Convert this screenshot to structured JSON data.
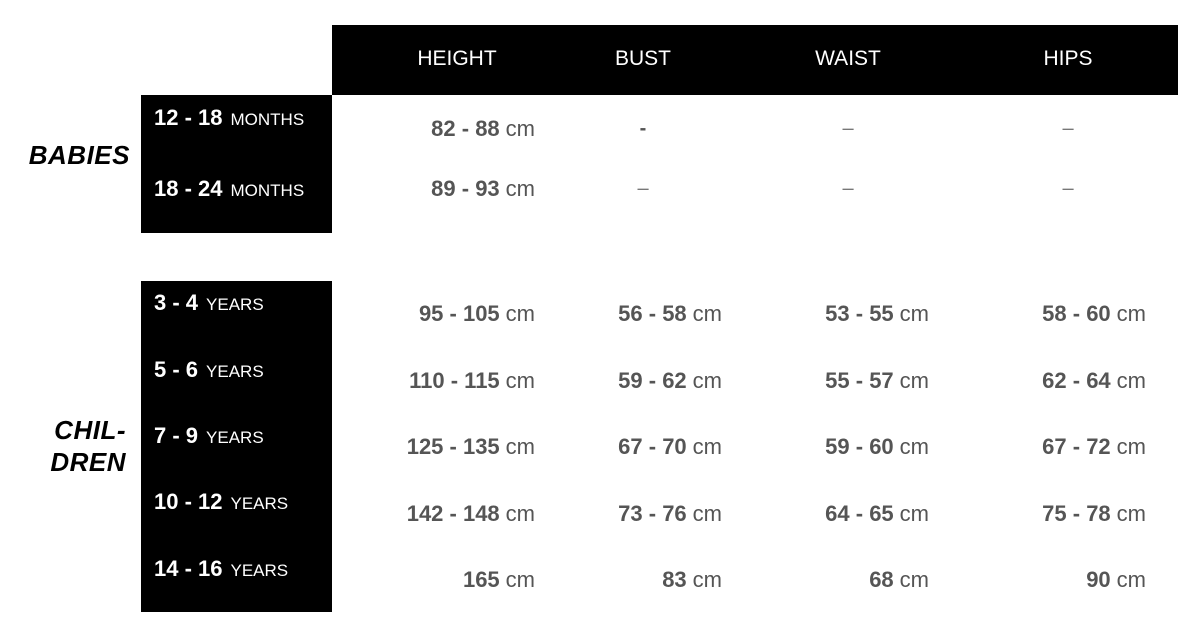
{
  "columns": [
    "HEIGHT",
    "BUST",
    "WAIST",
    "HIPS"
  ],
  "unit": "cm",
  "groups": [
    {
      "label": "BABIES",
      "rows": [
        {
          "range": "12 - 18",
          "unit": "MONTHS",
          "height": "82 - 88",
          "bust": "-",
          "waist": "–",
          "hips": "–"
        },
        {
          "range": "18 - 24",
          "unit": "MONTHS",
          "height": "89 - 93",
          "bust": "–",
          "waist": "–",
          "hips": "–"
        }
      ]
    },
    {
      "label_line1": "CHIL-",
      "label_line2": "DREN",
      "rows": [
        {
          "range": "3 - 4",
          "unit": "YEARS",
          "height": "95 - 105",
          "bust": "56 - 58",
          "waist": "53 - 55",
          "hips": "58 - 60"
        },
        {
          "range": "5 - 6",
          "unit": "YEARS",
          "height": "110 - 115",
          "bust": "59 - 62",
          "waist": "55 - 57",
          "hips": "62 - 64"
        },
        {
          "range": "7 - 9",
          "unit": "YEARS",
          "height": "125 - 135",
          "bust": "67 - 70",
          "waist": "59 - 60",
          "hips": "67 - 72"
        },
        {
          "range": "10 - 12",
          "unit": "YEARS",
          "height": "142 - 148",
          "bust": "73 - 76",
          "waist": "64 - 65",
          "hips": "75 - 78"
        },
        {
          "range": "14 - 16",
          "unit": "YEARS",
          "height": "165",
          "bust": "83",
          "waist": "68",
          "hips": "90"
        }
      ]
    }
  ]
}
